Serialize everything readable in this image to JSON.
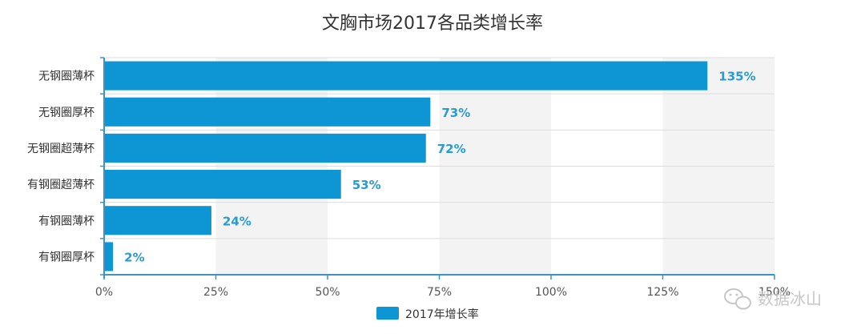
{
  "chart_data": {
    "type": "bar",
    "orientation": "horizontal",
    "title": "文胸市场2017各品类增长率",
    "categories": [
      "无钢圈薄杯",
      "无钢圈厚杯",
      "无钢圈超薄杯",
      "有钢圈超薄杯",
      "有钢圈薄杯",
      "有钢圈厚杯"
    ],
    "series": [
      {
        "name": "2017年增长率",
        "values": [
          135,
          73,
          72,
          53,
          24,
          2
        ],
        "color": "#0d96d3"
      }
    ],
    "data_labels": [
      "135%",
      "73%",
      "72%",
      "53%",
      "24%",
      "2%"
    ],
    "xticks": [
      0,
      25,
      50,
      75,
      100,
      125,
      150
    ],
    "xtick_labels": [
      "0%",
      "25%",
      "50%",
      "75%",
      "100%",
      "125%",
      "150%"
    ],
    "xlim": [
      0,
      150
    ],
    "grid": "alternating vertical bands",
    "legend_position": "bottom-center"
  },
  "watermark": {
    "text": "数据冰山",
    "icon": "wechat-icon"
  }
}
